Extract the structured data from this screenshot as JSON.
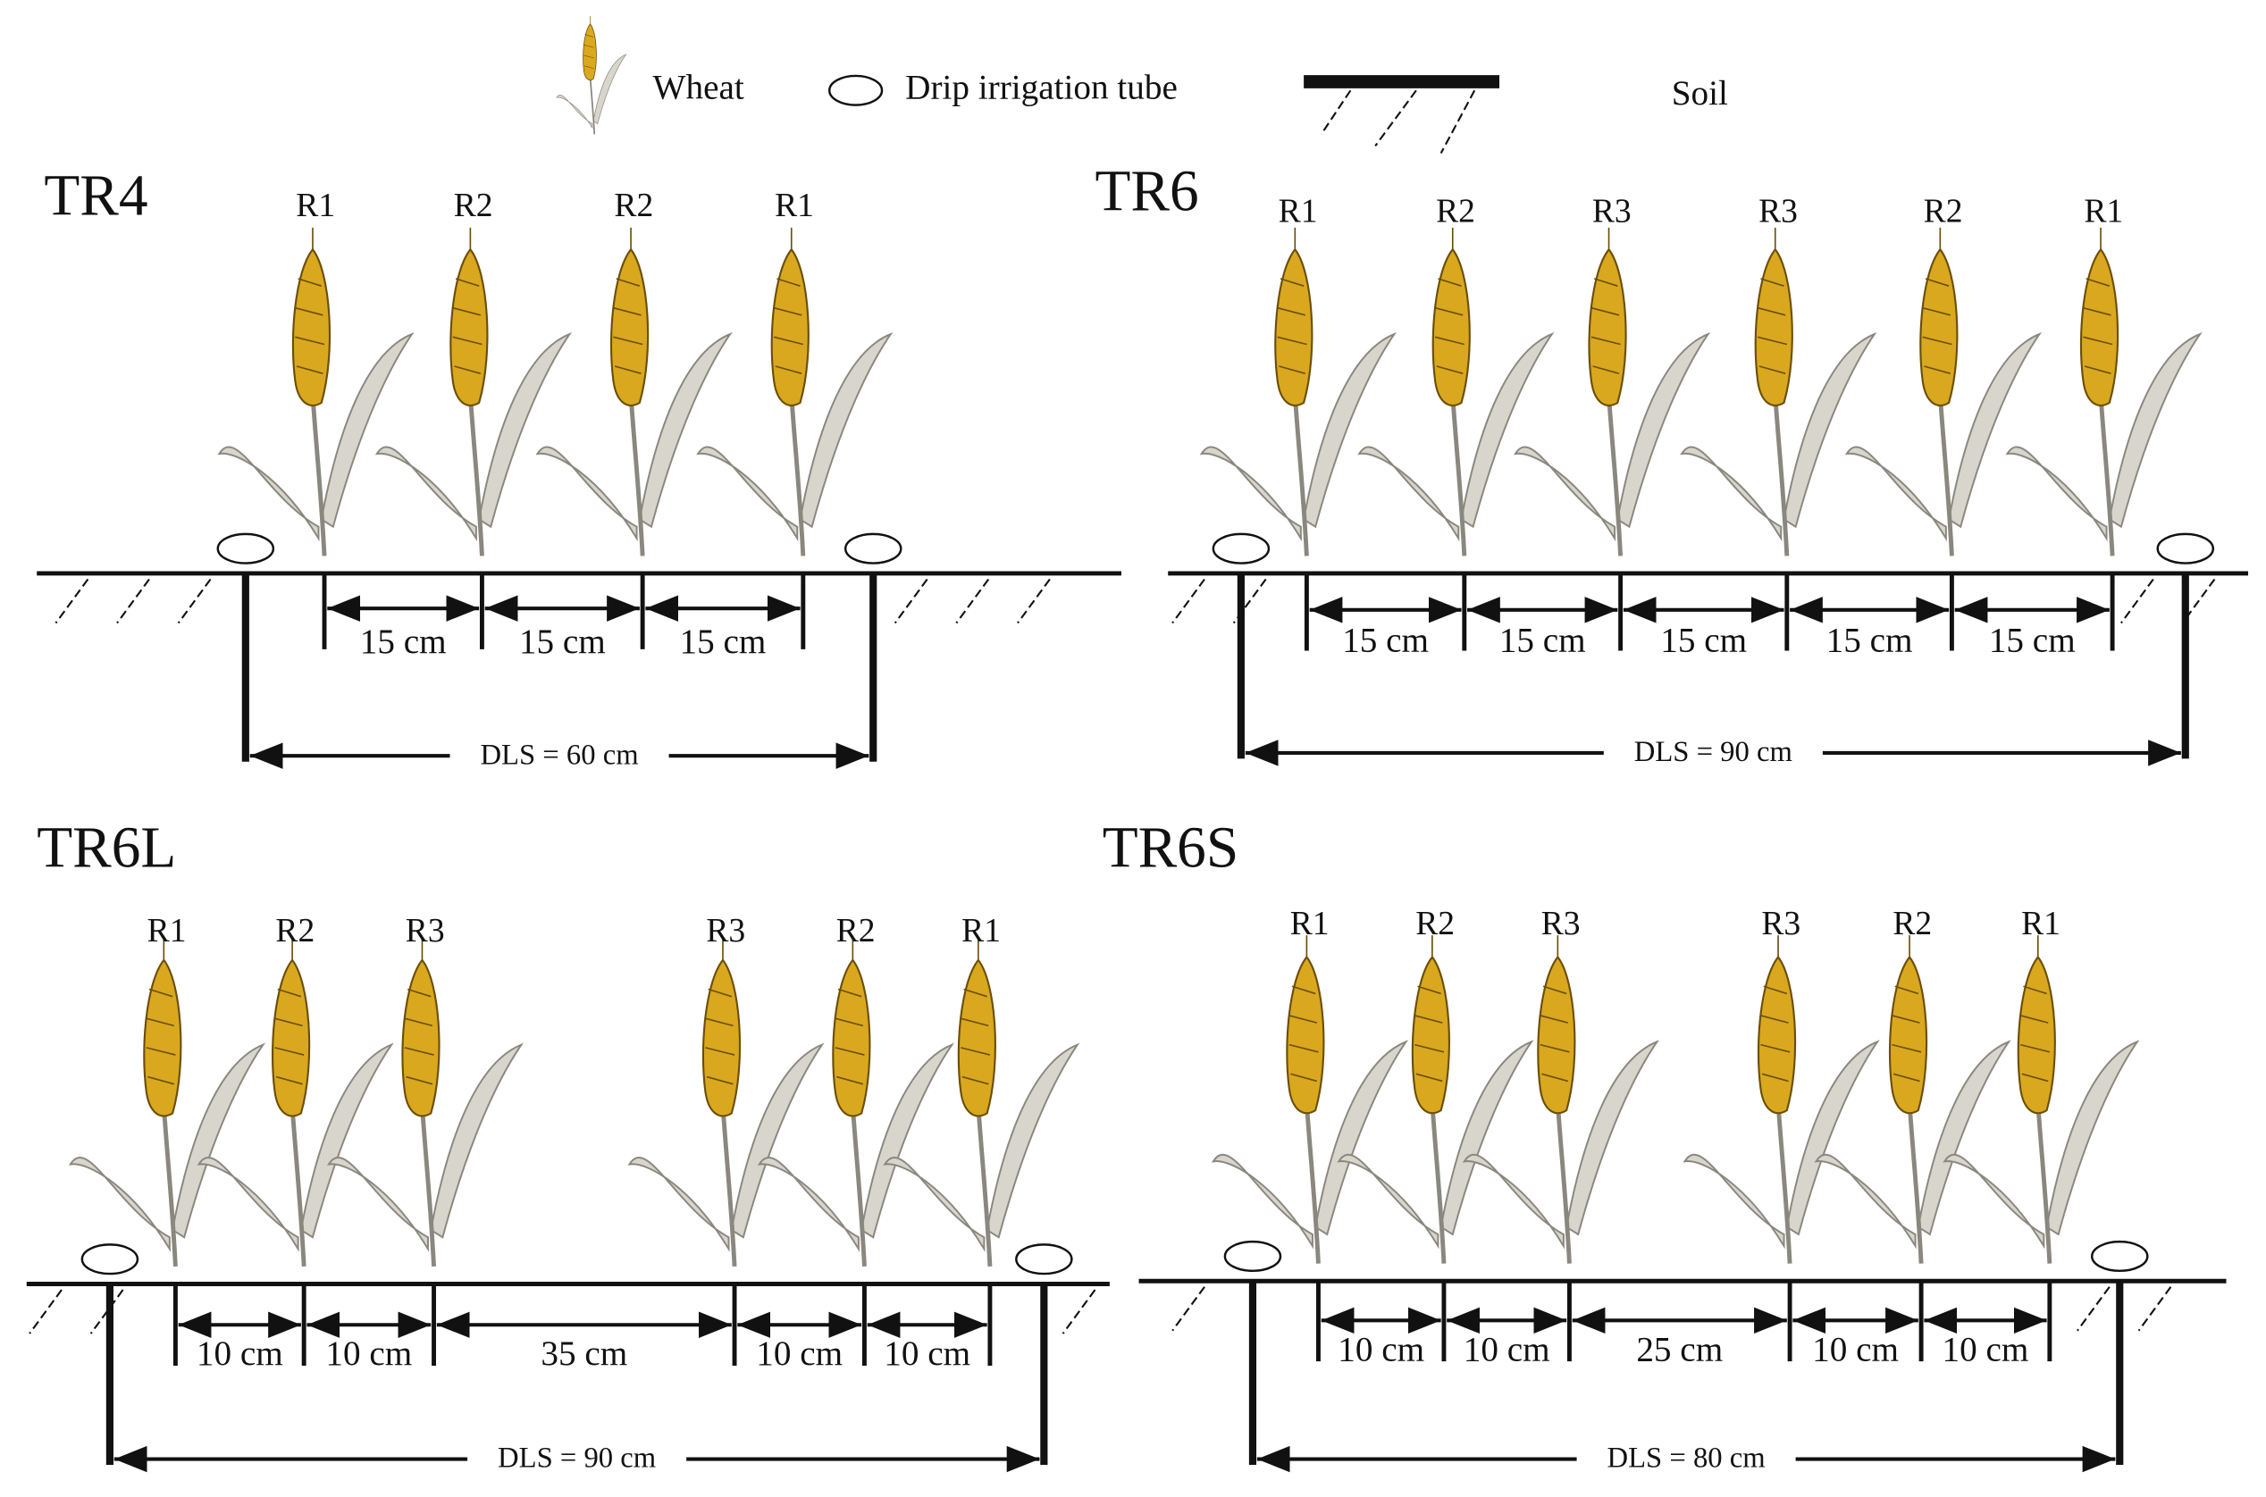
{
  "legend": {
    "wheat": "Wheat",
    "tube": "Drip irrigation tube",
    "soil": "Soil"
  },
  "panels": [
    {
      "title": "TR4",
      "rows": [
        "R1",
        "R2",
        "R2",
        "R1"
      ],
      "spacings": [
        "15 cm",
        "15 cm",
        "15 cm"
      ],
      "dls": "DLS = 60 cm"
    },
    {
      "title": "TR6",
      "rows": [
        "R1",
        "R2",
        "R3",
        "R3",
        "R2",
        "R1"
      ],
      "spacings": [
        "15 cm",
        "15 cm",
        "15 cm",
        "15 cm",
        "15 cm"
      ],
      "dls": "DLS = 90 cm"
    },
    {
      "title": "TR6L",
      "rows": [
        "R1",
        "R2",
        "R3",
        "R3",
        "R2",
        "R1"
      ],
      "spacings": [
        "10 cm",
        "10 cm",
        "35 cm",
        "10 cm",
        "10 cm"
      ],
      "dls": "DLS = 90 cm"
    },
    {
      "title": "TR6S",
      "rows": [
        "R1",
        "R2",
        "R3",
        "R3",
        "R2",
        "R1"
      ],
      "spacings": [
        "10 cm",
        "10 cm",
        "25 cm",
        "10 cm",
        "10 cm"
      ],
      "dls": "DLS = 80 cm"
    }
  ]
}
